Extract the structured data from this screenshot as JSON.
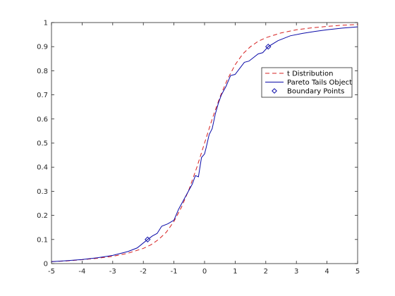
{
  "chart_data": {
    "type": "line",
    "xlim": [
      -5,
      5
    ],
    "ylim": [
      0,
      1
    ],
    "x_ticks": [
      -5,
      -4,
      -3,
      -2,
      -1,
      0,
      1,
      2,
      3,
      4,
      5
    ],
    "y_ticks": [
      0,
      0.1,
      0.2,
      0.3,
      0.4,
      0.5,
      0.6,
      0.7,
      0.8,
      0.9,
      1
    ],
    "grid": false,
    "legend_position": "top-right",
    "series": [
      {
        "name": "t Distribution",
        "style": "dashed",
        "color": "#d62020",
        "x": [
          -5,
          -4.5,
          -4,
          -3.5,
          -3,
          -2.5,
          -2,
          -1.75,
          -1.5,
          -1.25,
          -1,
          -0.75,
          -0.5,
          -0.25,
          0,
          0.25,
          0.5,
          0.75,
          1,
          1.25,
          1.5,
          1.75,
          2,
          2.5,
          3,
          3.5,
          4,
          4.5,
          5
        ],
        "y": [
          0.008,
          0.011,
          0.016,
          0.022,
          0.03,
          0.043,
          0.063,
          0.078,
          0.1,
          0.13,
          0.175,
          0.235,
          0.31,
          0.4,
          0.5,
          0.6,
          0.69,
          0.765,
          0.825,
          0.87,
          0.9,
          0.922,
          0.937,
          0.957,
          0.97,
          0.978,
          0.984,
          0.989,
          0.992
        ]
      },
      {
        "name": "Pareto Tails Object",
        "style": "solid",
        "color": "#0a0aa8",
        "x": [
          -5,
          -4.5,
          -4,
          -3.5,
          -3,
          -2.5,
          -2.2,
          -1.86,
          -1.7,
          -1.55,
          -1.4,
          -1.2,
          -1.0,
          -0.85,
          -0.7,
          -0.55,
          -0.4,
          -0.3,
          -0.2,
          -0.1,
          0,
          0.05,
          0.15,
          0.25,
          0.35,
          0.45,
          0.55,
          0.7,
          0.85,
          1.0,
          1.15,
          1.3,
          1.45,
          1.6,
          1.75,
          1.9,
          2.08,
          2.4,
          2.8,
          3.2,
          3.6,
          4.0,
          4.5,
          5
        ],
        "y": [
          0.008,
          0.012,
          0.017,
          0.024,
          0.034,
          0.05,
          0.065,
          0.1,
          0.115,
          0.125,
          0.155,
          0.165,
          0.18,
          0.225,
          0.26,
          0.295,
          0.33,
          0.365,
          0.36,
          0.44,
          0.455,
          0.48,
          0.535,
          0.56,
          0.62,
          0.665,
          0.7,
          0.735,
          0.78,
          0.785,
          0.81,
          0.835,
          0.84,
          0.855,
          0.87,
          0.875,
          0.9,
          0.925,
          0.945,
          0.955,
          0.963,
          0.97,
          0.977,
          0.982
        ]
      },
      {
        "name": "Boundary Points",
        "style": "markers",
        "marker": "diamond",
        "color": "#0a0aa8",
        "x": [
          -1.86,
          2.08
        ],
        "y": [
          0.1,
          0.9
        ]
      }
    ]
  }
}
